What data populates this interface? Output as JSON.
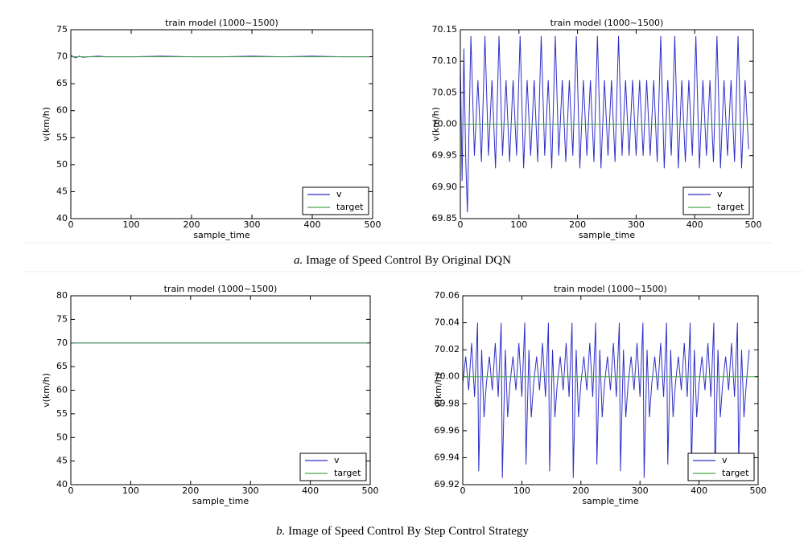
{
  "chart_data": [
    {
      "type": "line",
      "title": "train model (1000~1500)",
      "x_label": "sample_time",
      "y_label": "v(km/h)",
      "xlim": [
        0,
        500
      ],
      "xticks": [
        0,
        100,
        200,
        300,
        400,
        500
      ],
      "ylim": [
        40,
        75
      ],
      "yticks": [
        40,
        45,
        50,
        55,
        60,
        65,
        70,
        75
      ],
      "legend": "lower right",
      "series": [
        {
          "name": "v",
          "color": "#2f2fc8",
          "x": [
            0,
            4,
            8,
            14,
            20,
            30,
            45,
            60,
            100,
            150,
            200,
            250,
            300,
            350,
            400,
            450,
            495
          ],
          "values": [
            70.3,
            70.0,
            69.8,
            70.1,
            69.9,
            70.0,
            70.1,
            70.0,
            70.0,
            70.1,
            70.0,
            70.0,
            70.1,
            70.0,
            70.1,
            70.0,
            70.0
          ]
        },
        {
          "name": "target",
          "color": "#4aa84a",
          "x": [
            0,
            495
          ],
          "values": [
            70,
            70
          ]
        }
      ]
    },
    {
      "type": "line",
      "title": "train model (1000~1500)",
      "x_label": "sample_time",
      "y_label": "v(km/h)",
      "xlim": [
        0,
        500
      ],
      "xticks": [
        0,
        100,
        200,
        300,
        400,
        500
      ],
      "ylim": [
        69.85,
        70.15
      ],
      "yticks": [
        69.85,
        {
          "value": 69.9,
          "label": "69.90"
        },
        69.95,
        {
          "value": 70,
          "label": "70.00"
        },
        70.05,
        {
          "value": 70.1,
          "label": "70.10"
        },
        70.15
      ],
      "legend": "lower right",
      "series": [
        {
          "name": "v",
          "color": "#2f2fc8",
          "x": [
            0,
            3,
            6,
            9,
            12,
            18,
            24,
            30,
            36,
            42,
            48,
            54,
            60,
            66,
            72,
            78,
            84,
            90,
            96,
            102,
            108,
            114,
            120,
            126,
            132,
            138,
            144,
            150,
            156,
            162,
            168,
            174,
            180,
            186,
            192,
            198,
            204,
            210,
            216,
            222,
            228,
            234,
            240,
            246,
            252,
            258,
            264,
            270,
            276,
            282,
            288,
            294,
            300,
            306,
            312,
            318,
            324,
            330,
            336,
            342,
            348,
            354,
            360,
            366,
            372,
            378,
            384,
            390,
            396,
            402,
            408,
            414,
            420,
            426,
            432,
            438,
            444,
            450,
            456,
            462,
            468,
            474,
            480,
            486,
            492
          ],
          "values": [
            70.1,
            69.91,
            70.12,
            69.95,
            69.86,
            70.14,
            69.95,
            70.07,
            69.94,
            70.14,
            69.95,
            70.07,
            69.93,
            70.14,
            69.95,
            70.07,
            69.94,
            70.07,
            69.95,
            70.14,
            69.93,
            70.07,
            69.95,
            70.07,
            69.94,
            70.14,
            69.95,
            70.07,
            69.93,
            70.14,
            69.95,
            70.07,
            69.94,
            70.07,
            69.95,
            70.14,
            69.93,
            70.07,
            69.95,
            70.07,
            69.94,
            70.14,
            69.93,
            70.07,
            69.95,
            70.07,
            69.94,
            70.14,
            69.95,
            70.07,
            69.95,
            70.07,
            69.95,
            70.07,
            69.95,
            70.07,
            69.95,
            70.07,
            69.94,
            70.14,
            69.93,
            70.07,
            69.95,
            70.14,
            69.93,
            70.07,
            69.94,
            70.07,
            69.95,
            70.14,
            69.93,
            70.07,
            69.95,
            70.07,
            69.94,
            70.14,
            69.93,
            70.07,
            69.95,
            70.07,
            69.94,
            70.14,
            69.93,
            70.07,
            69.96
          ]
        },
        {
          "name": "target",
          "color": "#4aa84a",
          "x": [
            0,
            495
          ],
          "values": [
            70,
            70
          ]
        }
      ]
    },
    {
      "type": "line",
      "title": "train model (1000~1500)",
      "x_label": "sample_time",
      "y_label": "v(km/h)",
      "xlim": [
        0,
        500
      ],
      "xticks": [
        0,
        100,
        200,
        300,
        400,
        500
      ],
      "ylim": [
        40,
        80
      ],
      "yticks": [
        40,
        45,
        50,
        55,
        60,
        65,
        70,
        75,
        80
      ],
      "legend": "lower right",
      "series": [
        {
          "name": "v",
          "color": "#2f2fc8",
          "x": [
            0,
            495
          ],
          "values": [
            70,
            70
          ]
        },
        {
          "name": "target",
          "color": "#4aa84a",
          "x": [
            0,
            495
          ],
          "values": [
            70,
            70
          ]
        }
      ]
    },
    {
      "type": "line",
      "title": "train model (1000~1500)",
      "x_label": "sample_time",
      "y_label": "v(km/h)",
      "xlim": [
        0,
        500
      ],
      "xticks": [
        0,
        100,
        200,
        300,
        400,
        500
      ],
      "ylim": [
        69.92,
        70.06
      ],
      "yticks": [
        69.92,
        69.94,
        69.96,
        69.98,
        {
          "value": 70,
          "label": "70.00"
        },
        70.02,
        70.04,
        70.06
      ],
      "legend": "lower right",
      "series": [
        {
          "name": "v",
          "color": "#2f2fc8",
          "x": [
            0,
            5,
            10,
            15,
            20,
            25,
            27,
            32,
            36,
            40,
            45,
            50,
            55,
            60,
            65,
            67,
            72,
            76,
            80,
            85,
            90,
            95,
            100,
            105,
            107,
            112,
            116,
            120,
            125,
            130,
            135,
            140,
            145,
            147,
            152,
            156,
            160,
            165,
            170,
            175,
            180,
            185,
            187,
            192,
            196,
            200,
            205,
            210,
            215,
            220,
            225,
            227,
            232,
            236,
            240,
            245,
            250,
            255,
            260,
            265,
            267,
            272,
            276,
            280,
            285,
            290,
            295,
            300,
            305,
            307,
            312,
            316,
            320,
            325,
            330,
            335,
            340,
            345,
            347,
            352,
            356,
            360,
            365,
            370,
            375,
            380,
            385,
            387,
            392,
            396,
            400,
            405,
            410,
            415,
            420,
            425,
            427,
            432,
            436,
            440,
            445,
            450,
            455,
            460,
            465,
            467,
            472,
            476,
            480,
            485
          ],
          "values": [
            69.995,
            70.015,
            69.99,
            70.025,
            69.985,
            70.04,
            69.93,
            70.02,
            69.97,
            69.995,
            70.015,
            69.99,
            70.025,
            69.985,
            70.04,
            69.925,
            70.02,
            69.97,
            69.995,
            70.015,
            69.99,
            70.025,
            69.985,
            70.04,
            69.935,
            70.02,
            69.97,
            69.995,
            70.015,
            69.99,
            70.025,
            69.985,
            70.04,
            69.93,
            70.02,
            69.97,
            69.995,
            70.015,
            69.99,
            70.025,
            69.985,
            70.04,
            69.925,
            70.02,
            69.97,
            69.995,
            70.015,
            69.99,
            70.025,
            69.985,
            70.04,
            69.935,
            70.02,
            69.97,
            69.995,
            70.015,
            69.99,
            70.025,
            69.985,
            70.04,
            69.93,
            70.02,
            69.97,
            69.995,
            70.015,
            69.99,
            70.025,
            69.985,
            70.04,
            69.925,
            70.02,
            69.97,
            69.995,
            70.015,
            69.99,
            70.025,
            69.985,
            70.04,
            69.935,
            70.02,
            69.97,
            69.995,
            70.015,
            69.99,
            70.025,
            69.985,
            70.04,
            69.93,
            70.02,
            69.97,
            69.995,
            70.015,
            69.99,
            70.025,
            69.985,
            70.04,
            69.925,
            70.02,
            69.97,
            69.995,
            70.015,
            69.99,
            70.025,
            69.985,
            70.04,
            69.935,
            70.02,
            69.97,
            69.995,
            70.02
          ]
        },
        {
          "name": "target",
          "color": "#4aa84a",
          "x": [
            0,
            495
          ],
          "values": [
            70,
            70
          ]
        }
      ]
    }
  ],
  "captions": [
    {
      "label": "a.",
      "text": "Image of Speed Control By Original DQN"
    },
    {
      "label": "b.",
      "text": "Image of Speed Control By Step Control Strategy"
    }
  ]
}
